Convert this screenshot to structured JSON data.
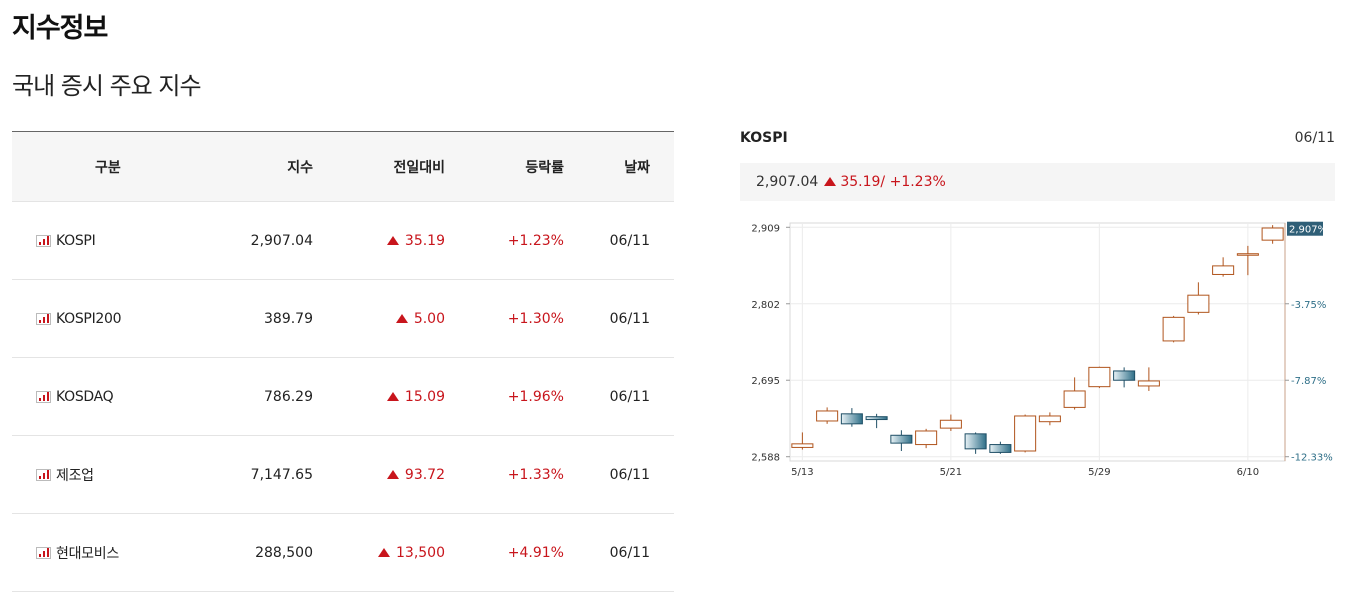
{
  "page": {
    "title": "지수정보",
    "section_title": "국내 증시 주요 지수"
  },
  "table": {
    "headers": {
      "name": "구분",
      "value": "지수",
      "diff": "전일대비",
      "rate": "등락률",
      "date": "날짜"
    },
    "rows": [
      {
        "name": "KOSPI",
        "value": "2,907.04",
        "diff": "35.19",
        "rate": "+1.23%",
        "date": "06/11"
      },
      {
        "name": "KOSPI200",
        "value": "389.79",
        "diff": "5.00",
        "rate": "+1.30%",
        "date": "06/11"
      },
      {
        "name": "KOSDAQ",
        "value": "786.29",
        "diff": "15.09",
        "rate": "+1.96%",
        "date": "06/11"
      },
      {
        "name": "제조업",
        "value": "7,147.65",
        "diff": "93.72",
        "rate": "+1.33%",
        "date": "06/11"
      },
      {
        "name": "현대모비스",
        "value": "288,500",
        "diff": "13,500",
        "rate": "+4.91%",
        "date": "06/11"
      }
    ]
  },
  "panel": {
    "name": "KOSPI",
    "date": "06/11",
    "summary_value": "2,907.04",
    "summary_change": "35.19/ +1.23%"
  },
  "colors": {
    "up": "#c8151c",
    "candle_up": "#b0541c",
    "candle_down": "#2f6f88"
  },
  "chart_data": {
    "type": "candlestick",
    "y_ticks": [
      "2,909",
      "2,802",
      "2,695",
      "2,588"
    ],
    "y_tick_values": [
      2909,
      2802,
      2695,
      2588
    ],
    "ylim": [
      2582,
      2915
    ],
    "right_ticks": [
      "-3.75%",
      "-7.87%",
      "-12.33%"
    ],
    "right_tick_values": [
      2802,
      2695,
      2588
    ],
    "current_label": "2,907%",
    "current_value": 2907,
    "x_ticks": [
      "5/13",
      "5/21",
      "5/29",
      "6/10"
    ],
    "x_tick_index": [
      0,
      6,
      12,
      18
    ],
    "candles": [
      {
        "o": 2601,
        "c": 2606,
        "h": 2622,
        "l": 2598
      },
      {
        "o": 2638,
        "c": 2652,
        "h": 2657,
        "l": 2634
      },
      {
        "o": 2648,
        "c": 2634,
        "h": 2656,
        "l": 2630
      },
      {
        "o": 2644,
        "c": 2640,
        "h": 2648,
        "l": 2628
      },
      {
        "o": 2618,
        "c": 2607,
        "h": 2625,
        "l": 2596
      },
      {
        "o": 2605,
        "c": 2624,
        "h": 2627,
        "l": 2600
      },
      {
        "o": 2628,
        "c": 2639,
        "h": 2647,
        "l": 2624
      },
      {
        "o": 2620,
        "c": 2599,
        "h": 2622,
        "l": 2592
      },
      {
        "o": 2605,
        "c": 2594,
        "h": 2609,
        "l": 2592
      },
      {
        "o": 2596,
        "c": 2645,
        "h": 2647,
        "l": 2594
      },
      {
        "o": 2637,
        "c": 2645,
        "h": 2650,
        "l": 2632
      },
      {
        "o": 2657,
        "c": 2680,
        "h": 2699,
        "l": 2654
      },
      {
        "o": 2686,
        "c": 2713,
        "h": 2714,
        "l": 2684
      },
      {
        "o": 2708,
        "c": 2695,
        "h": 2713,
        "l": 2685
      },
      {
        "o": 2687,
        "c": 2694,
        "h": 2713,
        "l": 2680
      },
      {
        "o": 2750,
        "c": 2783,
        "h": 2785,
        "l": 2748
      },
      {
        "o": 2790,
        "c": 2814,
        "h": 2832,
        "l": 2787
      },
      {
        "o": 2843,
        "c": 2855,
        "h": 2867,
        "l": 2840
      },
      {
        "o": 2871,
        "c": 2872,
        "h": 2883,
        "l": 2842
      },
      {
        "o": 2891,
        "c": 2908,
        "h": 2912,
        "l": 2886
      }
    ]
  }
}
